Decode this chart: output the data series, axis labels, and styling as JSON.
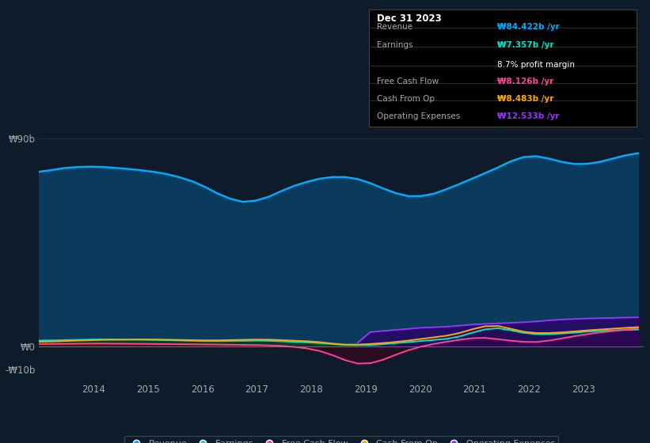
{
  "bg_color": "#0d1b2a",
  "plot_bg_color": "#0d1b2a",
  "revenue_color": "#00aaff",
  "revenue_fill": "#0a3a5c",
  "earnings_color": "#00e5cc",
  "earnings_fill": "#003a35",
  "free_cash_color": "#ff4499",
  "free_cash_fill": "#4a001a",
  "cash_from_op_color": "#ffaa00",
  "cash_from_op_fill": "#3a2a00",
  "op_expenses_color": "#9933ff",
  "op_expenses_fill": "#2d0066",
  "tooltip_title": "Dec 31 2023",
  "tooltip_revenue_val": "₩84.422b /yr",
  "tooltip_earnings_val": "₩7.357b /yr",
  "tooltip_margin": "8.7% profit margin",
  "tooltip_fcf_val": "₩8.126b /yr",
  "tooltip_cfop_val": "₩8.483b /yr",
  "tooltip_opex_val": "₩12.533b /yr",
  "revenue_color_tooltip": "#00aaff",
  "earnings_color_tooltip": "#00e5cc",
  "fcf_color_tooltip": "#ff4499",
  "cfop_color_tooltip": "#ffaa00",
  "opex_color_tooltip": "#9933ff",
  "text_color": "#aaaaaa",
  "white_color": "#ffffff",
  "revenue_label": "Revenue",
  "earnings_label": "Earnings",
  "fcf_label": "Free Cash Flow",
  "cfop_label": "Cash From Op",
  "opex_label": "Operating Expenses"
}
